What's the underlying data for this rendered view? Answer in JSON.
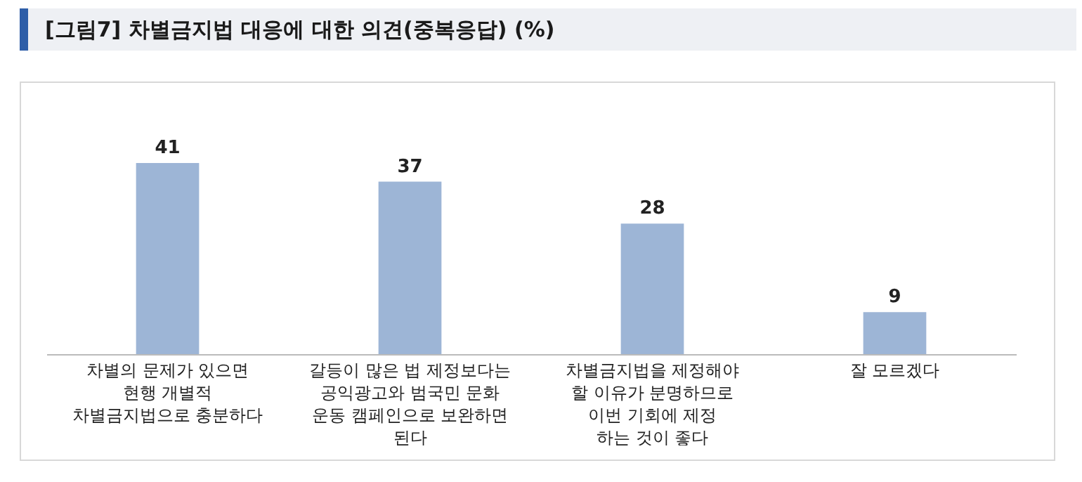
{
  "chart_data": {
    "type": "bar",
    "title": "[그림7] 차별금지법 대응에 대한 의견(중복응답) (%)",
    "categories": [
      "차별의 문제가 있으면\n현행 개별적\n차별금지법으로 충분하다",
      "갈등이 많은 법 제정보다는\n공익광고와 범국민 문화\n운동 캠페인으로 보완하면\n된다",
      "차별금지법을 제정해야\n할 이유가 분명하므로\n이번 기회에 제정\n하는 것이 좋다",
      "잘 모르겠다"
    ],
    "values": [
      41,
      37,
      28,
      9
    ],
    "color": "#9db5d6",
    "data_labels": true,
    "grid": false
  }
}
